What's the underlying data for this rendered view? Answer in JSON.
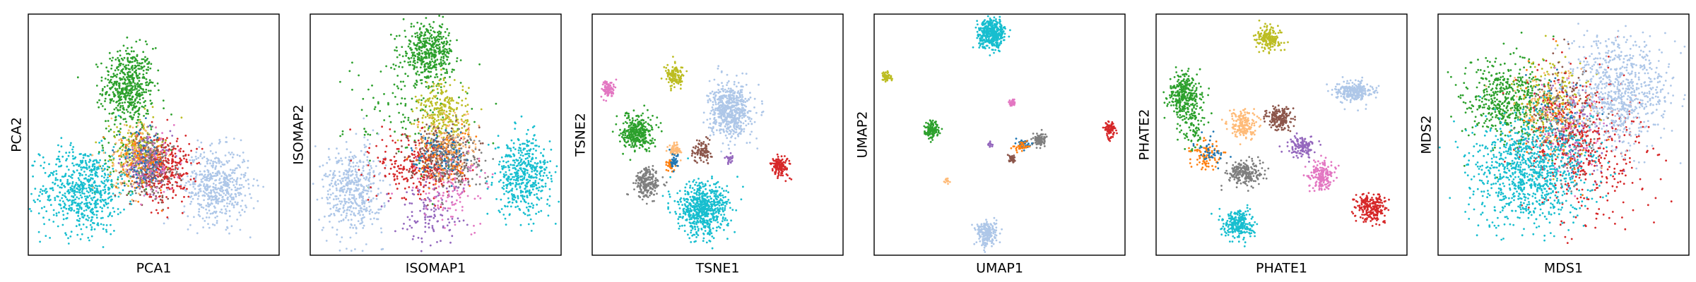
{
  "chart_data": [
    {
      "type": "scatter",
      "xlabel": "PCA1",
      "ylabel": "PCA2",
      "grid": false,
      "ticks": false,
      "xlim": [
        0,
        100
      ],
      "ylim": [
        0,
        100
      ],
      "series": [
        {
          "color": "#2ca02c",
          "clusters": [
            {
              "cx": 40,
              "cy": 70,
              "sx": 5,
              "sy": 8,
              "n": 520
            },
            {
              "cx": 39,
              "cy": 45,
              "sx": 6,
              "sy": 10,
              "n": 90
            }
          ]
        },
        {
          "color": "#17becf",
          "clusters": [
            {
              "cx": 22,
              "cy": 27,
              "sx": 8.5,
              "sy": 9,
              "n": 650
            }
          ]
        },
        {
          "color": "#aec7e8",
          "clusters": [
            {
              "cx": 75,
              "cy": 29,
              "sx": 6.5,
              "sy": 7.5,
              "n": 520
            }
          ]
        },
        {
          "color": "#d62728",
          "clusters": [
            {
              "cx": 55,
              "cy": 36,
              "sx": 5,
              "sy": 7,
              "n": 300
            }
          ]
        },
        {
          "color": "#8c564b",
          "clusters": [
            {
              "cx": 48,
              "cy": 37,
              "sx": 5,
              "sy": 7,
              "n": 200
            }
          ]
        },
        {
          "color": "#bcbd22",
          "clusters": [
            {
              "cx": 43,
              "cy": 44,
              "sx": 5,
              "sy": 6,
              "n": 160
            }
          ]
        },
        {
          "color": "#ffbb78",
          "clusters": [
            {
              "cx": 41,
              "cy": 40,
              "sx": 5,
              "sy": 7,
              "n": 130
            }
          ]
        },
        {
          "color": "#7f7f7f",
          "clusters": [
            {
              "cx": 48,
              "cy": 38,
              "sx": 5,
              "sy": 6,
              "n": 130
            }
          ]
        },
        {
          "color": "#9467bd",
          "clusters": [
            {
              "cx": 47,
              "cy": 38,
              "sx": 5,
              "sy": 6,
              "n": 90
            }
          ]
        },
        {
          "color": "#e377c2",
          "clusters": [
            {
              "cx": 49,
              "cy": 37,
              "sx": 5,
              "sy": 6,
              "n": 70
            }
          ]
        },
        {
          "color": "#ff7f0e",
          "clusters": [
            {
              "cx": 45,
              "cy": 39,
              "sx": 5,
              "sy": 6,
              "n": 70
            }
          ]
        },
        {
          "color": "#1f77b4",
          "clusters": [
            {
              "cx": 45,
              "cy": 39,
              "sx": 5,
              "sy": 6,
              "n": 60
            }
          ]
        }
      ]
    },
    {
      "type": "scatter",
      "xlabel": "ISOMAP1",
      "ylabel": "ISOMAP2",
      "grid": false,
      "ticks": false,
      "xlim": [
        0,
        100
      ],
      "ylim": [
        0,
        100
      ],
      "series": [
        {
          "color": "#2ca02c",
          "clusters": [
            {
              "cx": 47,
              "cy": 84,
              "sx": 5,
              "sy": 6,
              "n": 450
            },
            {
              "cx": 40,
              "cy": 60,
              "sx": 13,
              "sy": 12,
              "n": 120
            }
          ]
        },
        {
          "color": "#bcbd22",
          "clusters": [
            {
              "cx": 53,
              "cy": 58,
              "sx": 5,
              "sy": 7,
              "n": 280
            }
          ]
        },
        {
          "color": "#17becf",
          "clusters": [
            {
              "cx": 85,
              "cy": 33,
              "sx": 5.5,
              "sy": 8,
              "n": 480
            }
          ]
        },
        {
          "color": "#aec7e8",
          "clusters": [
            {
              "cx": 17,
              "cy": 27,
              "sx": 6,
              "sy": 9,
              "n": 480
            }
          ]
        },
        {
          "color": "#d62728",
          "clusters": [
            {
              "cx": 45,
              "cy": 37,
              "sx": 9,
              "sy": 7,
              "n": 300
            }
          ]
        },
        {
          "color": "#8c564b",
          "clusters": [
            {
              "cx": 51,
              "cy": 42,
              "sx": 6,
              "sy": 6,
              "n": 200
            }
          ]
        },
        {
          "color": "#7f7f7f",
          "clusters": [
            {
              "cx": 57,
              "cy": 40,
              "sx": 6,
              "sy": 6,
              "n": 200
            }
          ]
        },
        {
          "color": "#9467bd",
          "clusters": [
            {
              "cx": 48,
              "cy": 17,
              "sx": 7,
              "sy": 7,
              "n": 120
            }
          ]
        },
        {
          "color": "#e377c2",
          "clusters": [
            {
              "cx": 56,
              "cy": 27,
              "sx": 8,
              "sy": 8,
              "n": 110
            }
          ]
        },
        {
          "color": "#ffbb78",
          "clusters": [
            {
              "cx": 55,
              "cy": 46,
              "sx": 6,
              "sy": 7,
              "n": 110
            }
          ]
        },
        {
          "color": "#ff7f0e",
          "clusters": [
            {
              "cx": 52,
              "cy": 40,
              "sx": 6,
              "sy": 6,
              "n": 70
            }
          ]
        },
        {
          "color": "#1f77b4",
          "clusters": [
            {
              "cx": 53,
              "cy": 42,
              "sx": 6,
              "sy": 6,
              "n": 70
            }
          ]
        }
      ]
    },
    {
      "type": "scatter",
      "xlabel": "TSNE1",
      "ylabel": "TSNE2",
      "grid": false,
      "ticks": false,
      "xlim": [
        0,
        100
      ],
      "ylim": [
        0,
        100
      ],
      "series": [
        {
          "color": "#e377c2",
          "clusters": [
            {
              "cx": 6.5,
              "cy": 69,
              "sx": 1.3,
              "sy": 1.8,
              "n": 90
            }
          ]
        },
        {
          "color": "#bcbd22",
          "clusters": [
            {
              "cx": 33,
              "cy": 74,
              "sx": 1.8,
              "sy": 2.2,
              "n": 130
            }
          ]
        },
        {
          "color": "#aec7e8",
          "clusters": [
            {
              "cx": 55,
              "cy": 60,
              "sx": 4,
              "sy": 5.5,
              "n": 600
            }
          ]
        },
        {
          "color": "#2ca02c",
          "clusters": [
            {
              "cx": 18,
              "cy": 51,
              "sx": 3,
              "sy": 3.5,
              "n": 330
            }
          ]
        },
        {
          "color": "#ffbb78",
          "clusters": [
            {
              "cx": 33,
              "cy": 44,
              "sx": 1.2,
              "sy": 1.5,
              "n": 60
            }
          ]
        },
        {
          "color": "#8c564b",
          "clusters": [
            {
              "cx": 44,
              "cy": 43,
              "sx": 1.8,
              "sy": 2.2,
              "n": 100
            }
          ]
        },
        {
          "color": "#9467bd",
          "clusters": [
            {
              "cx": 55,
              "cy": 40,
              "sx": 0.8,
              "sy": 1,
              "n": 25
            }
          ]
        },
        {
          "color": "#d62728",
          "clusters": [
            {
              "cx": 75,
              "cy": 37,
              "sx": 1.8,
              "sy": 2.2,
              "n": 140
            }
          ]
        },
        {
          "color": "#7f7f7f",
          "clusters": [
            {
              "cx": 22,
              "cy": 30,
              "sx": 2.5,
              "sy": 3,
              "n": 220
            }
          ]
        },
        {
          "color": "#17becf",
          "clusters": [
            {
              "cx": 44,
              "cy": 19,
              "sx": 5,
              "sy": 5.5,
              "n": 650
            }
          ]
        },
        {
          "color": "#ff7f0e",
          "clusters": [
            {
              "cx": 31,
              "cy": 37,
              "sx": 1,
              "sy": 1.2,
              "n": 35
            }
          ]
        },
        {
          "color": "#1f77b4",
          "clusters": [
            {
              "cx": 33,
              "cy": 39,
              "sx": 1,
              "sy": 1.5,
              "n": 35
            }
          ]
        }
      ]
    },
    {
      "type": "scatter",
      "xlabel": "UMAP1",
      "ylabel": "UMAP2",
      "grid": false,
      "ticks": false,
      "xlim": [
        0,
        100
      ],
      "ylim": [
        0,
        100
      ],
      "series": [
        {
          "color": "#17becf",
          "clusters": [
            {
              "cx": 47,
              "cy": 92,
              "sx": 2.6,
              "sy": 3,
              "n": 450
            }
          ]
        },
        {
          "color": "#bcbd22",
          "clusters": [
            {
              "cx": 5,
              "cy": 74,
              "sx": 0.9,
              "sy": 1,
              "n": 60
            }
          ]
        },
        {
          "color": "#e377c2",
          "clusters": [
            {
              "cx": 55,
              "cy": 63,
              "sx": 0.6,
              "sy": 0.8,
              "n": 40
            }
          ]
        },
        {
          "color": "#2ca02c",
          "clusters": [
            {
              "cx": 23,
              "cy": 52,
              "sx": 1.4,
              "sy": 1.8,
              "n": 130
            }
          ]
        },
        {
          "color": "#d62728",
          "clusters": [
            {
              "cx": 94,
              "cy": 52,
              "sx": 1.1,
              "sy": 1.5,
              "n": 90
            }
          ]
        },
        {
          "color": "#7f7f7f",
          "clusters": [
            {
              "cx": 66,
              "cy": 48,
              "sx": 1.2,
              "sy": 1.5,
              "n": 90
            }
          ]
        },
        {
          "color": "#1f77b4",
          "clusters": [
            {
              "cx": 60,
              "cy": 46,
              "sx": 1.4,
              "sy": 1,
              "n": 40
            }
          ]
        },
        {
          "color": "#ff7f0e",
          "clusters": [
            {
              "cx": 59,
              "cy": 45,
              "sx": 1.4,
              "sy": 1,
              "n": 40
            }
          ]
        },
        {
          "color": "#9467bd",
          "clusters": [
            {
              "cx": 46,
              "cy": 46,
              "sx": 0.5,
              "sy": 0.6,
              "n": 15
            }
          ]
        },
        {
          "color": "#8c564b",
          "clusters": [
            {
              "cx": 55,
              "cy": 40,
              "sx": 0.6,
              "sy": 0.8,
              "n": 40
            }
          ]
        },
        {
          "color": "#ffbb78",
          "clusters": [
            {
              "cx": 29,
              "cy": 31,
              "sx": 0.5,
              "sy": 0.6,
              "n": 15
            }
          ]
        },
        {
          "color": "#aec7e8",
          "clusters": [
            {
              "cx": 45,
              "cy": 9,
              "sx": 2,
              "sy": 2.5,
              "n": 220
            }
          ]
        }
      ]
    },
    {
      "type": "scatter",
      "xlabel": "PHATE1",
      "ylabel": "PHATE2",
      "grid": false,
      "ticks": false,
      "xlim": [
        0,
        100
      ],
      "ylim": [
        0,
        100
      ],
      "series": [
        {
          "color": "#bcbd22",
          "clusters": [
            {
              "cx": 45,
              "cy": 90,
              "sx": 2.5,
              "sy": 2.5,
              "n": 180
            }
          ]
        },
        {
          "color": "#aec7e8",
          "clusters": [
            {
              "cx": 79,
              "cy": 68,
              "sx": 3.5,
              "sy": 2,
              "n": 260
            }
          ]
        },
        {
          "color": "#2ca02c",
          "clusters": [
            {
              "cx": 11,
              "cy": 66,
              "sx": 3,
              "sy": 5,
              "n": 300
            },
            {
              "cx": 15,
              "cy": 55,
              "sx": 2.5,
              "sy": 6,
              "n": 100
            }
          ]
        },
        {
          "color": "#8c564b",
          "clusters": [
            {
              "cx": 49,
              "cy": 57,
              "sx": 2.5,
              "sy": 2.5,
              "n": 180
            }
          ]
        },
        {
          "color": "#ffbb78",
          "clusters": [
            {
              "cx": 35,
              "cy": 54,
              "sx": 3,
              "sy": 3,
              "n": 180
            }
          ]
        },
        {
          "color": "#9467bd",
          "clusters": [
            {
              "cx": 58,
              "cy": 45,
              "sx": 2.5,
              "sy": 2,
              "n": 130
            }
          ]
        },
        {
          "color": "#ff7f0e",
          "clusters": [
            {
              "cx": 20,
              "cy": 41,
              "sx": 3,
              "sy": 3,
              "n": 90
            }
          ]
        },
        {
          "color": "#1f77b4",
          "clusters": [
            {
              "cx": 22,
              "cy": 43,
              "sx": 3,
              "sy": 3,
              "n": 40
            }
          ]
        },
        {
          "color": "#7f7f7f",
          "clusters": [
            {
              "cx": 35,
              "cy": 34,
              "sx": 3.5,
              "sy": 2.5,
              "n": 220
            }
          ]
        },
        {
          "color": "#e377c2",
          "clusters": [
            {
              "cx": 66,
              "cy": 33,
              "sx": 2.5,
              "sy": 3,
              "n": 180
            }
          ]
        },
        {
          "color": "#d62728",
          "clusters": [
            {
              "cx": 86,
              "cy": 20,
              "sx": 3,
              "sy": 3,
              "n": 220
            }
          ]
        },
        {
          "color": "#17becf",
          "clusters": [
            {
              "cx": 33,
              "cy": 13,
              "sx": 3,
              "sy": 3,
              "n": 260
            }
          ]
        }
      ]
    },
    {
      "type": "scatter",
      "xlabel": "MDS1",
      "ylabel": "MDS2",
      "grid": false,
      "ticks": false,
      "xlim": [
        0,
        100
      ],
      "ylim": [
        0,
        100
      ],
      "series": [
        {
          "color": "#2ca02c",
          "clusters": [
            {
              "cx": 27,
              "cy": 63,
              "sx": 9,
              "sy": 9,
              "n": 550
            }
          ]
        },
        {
          "color": "#bcbd22",
          "clusters": [
            {
              "cx": 48,
              "cy": 62,
              "sx": 7,
              "sy": 10,
              "n": 160
            }
          ]
        },
        {
          "color": "#8c564b",
          "clusters": [
            {
              "cx": 49,
              "cy": 60,
              "sx": 6,
              "sy": 10,
              "n": 120
            }
          ]
        },
        {
          "color": "#ffbb78",
          "clusters": [
            {
              "cx": 44,
              "cy": 60,
              "sx": 7,
              "sy": 10,
              "n": 120
            }
          ]
        },
        {
          "color": "#7f7f7f",
          "clusters": [
            {
              "cx": 50,
              "cy": 50,
              "sx": 8,
              "sy": 10,
              "n": 120
            }
          ]
        },
        {
          "color": "#9467bd",
          "clusters": [
            {
              "cx": 55,
              "cy": 50,
              "sx": 8,
              "sy": 10,
              "n": 100
            }
          ]
        },
        {
          "color": "#e377c2",
          "clusters": [
            {
              "cx": 52,
              "cy": 52,
              "sx": 8,
              "sy": 10,
              "n": 100
            }
          ]
        },
        {
          "color": "#ff7f0e",
          "clusters": [
            {
              "cx": 47,
              "cy": 55,
              "sx": 8,
              "sy": 10,
              "n": 80
            }
          ]
        },
        {
          "color": "#1f77b4",
          "clusters": [
            {
              "cx": 48,
              "cy": 55,
              "sx": 8,
              "sy": 10,
              "n": 60
            }
          ]
        },
        {
          "color": "#d62728",
          "clusters": [
            {
              "cx": 60,
              "cy": 45,
              "sx": 12,
              "sy": 16,
              "n": 420
            }
          ]
        },
        {
          "color": "#aec7e8",
          "clusters": [
            {
              "cx": 72,
              "cy": 68,
              "sx": 10,
              "sy": 11,
              "n": 750
            }
          ]
        },
        {
          "color": "#17becf",
          "clusters": [
            {
              "cx": 37,
              "cy": 35,
              "sx": 12,
              "sy": 11,
              "n": 950
            }
          ]
        }
      ]
    }
  ]
}
